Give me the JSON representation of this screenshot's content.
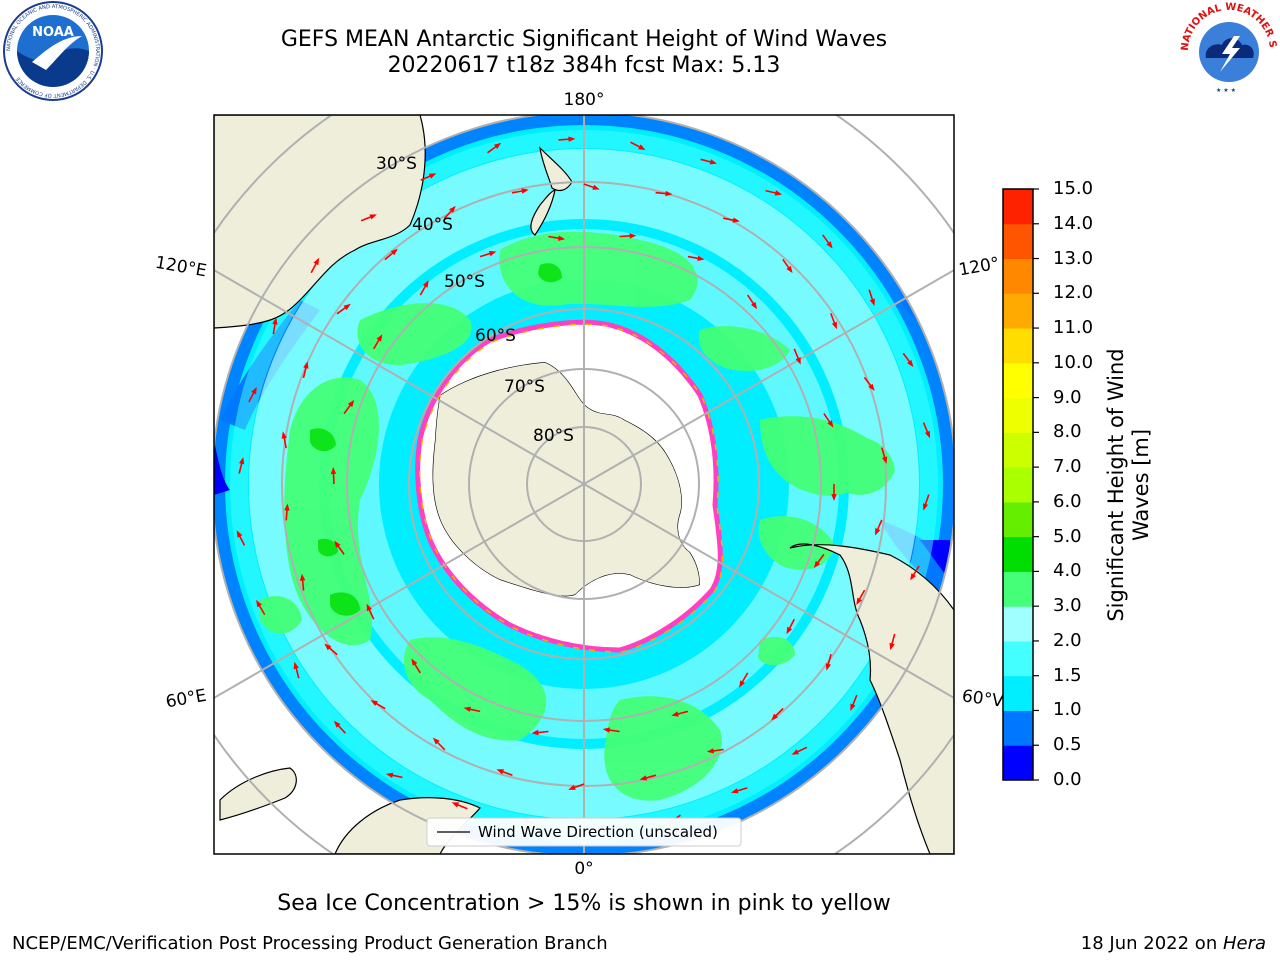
{
  "title": {
    "line1": "GEFS MEAN Antarctic Significant Height of Wind Waves",
    "line2": "20220617 t18z 384h fcst   Max: 5.13"
  },
  "logos": {
    "left": "noaa-logo",
    "left_text": "NOAA",
    "left_ring_text": "NATIONAL OCEANIC AND ATMOSPHERIC ADMINISTRATION · U.S. DEPARTMENT OF COMMERCE",
    "right": "nws-logo",
    "right_ring_text": "NATIONAL WEATHER SERVICE"
  },
  "map": {
    "projection": "south-polar-stereographic",
    "longitude_labels": {
      "top": "180°",
      "upper_left": "120°E",
      "upper_right": "120°",
      "lower_left": "60°E",
      "lower_right": "60°V",
      "bottom": "0°"
    },
    "latitude_labels": [
      "30°S",
      "40°S",
      "50°S",
      "60°S",
      "70°S",
      "80°S"
    ],
    "legend_entry": "Wind Wave Direction (unscaled)",
    "colors": {
      "land": "#efeedb",
      "ice": "#ffffff",
      "ice_edge": "#ff40c0",
      "arrow": "#ff0000",
      "grid": "#b0b0b0"
    }
  },
  "colorbar": {
    "label": "Significant Height of Wind Waves [m]",
    "label_line1": "Significant Height of Wind",
    "label_line2": "Waves [m]",
    "ticks": [
      "15.0",
      "14.0",
      "13.0",
      "12.0",
      "11.0",
      "10.0",
      "9.0",
      "8.0",
      "7.0",
      "6.0",
      "5.0",
      "4.0",
      "3.0",
      "2.0",
      "1.5",
      "1.0",
      "0.5",
      "0.0"
    ],
    "colors_bottom_to_top": [
      "#0000ff",
      "#0077ff",
      "#00eeff",
      "#44ffff",
      "#a0ffff",
      "#44ff77",
      "#00dd00",
      "#66ee00",
      "#aaff00",
      "#ccff00",
      "#eeff00",
      "#ffff00",
      "#ffdd00",
      "#ffaa00",
      "#ff8800",
      "#ff5500",
      "#ff2200"
    ]
  },
  "subtitle": "Sea Ice Concentration > 15% is shown in pink to yellow",
  "footer": {
    "left": "NCEP/EMC/Verification Post Processing Product Generation Branch",
    "right_prefix": "18 Jun 2022 on ",
    "right_host": "Hera"
  }
}
